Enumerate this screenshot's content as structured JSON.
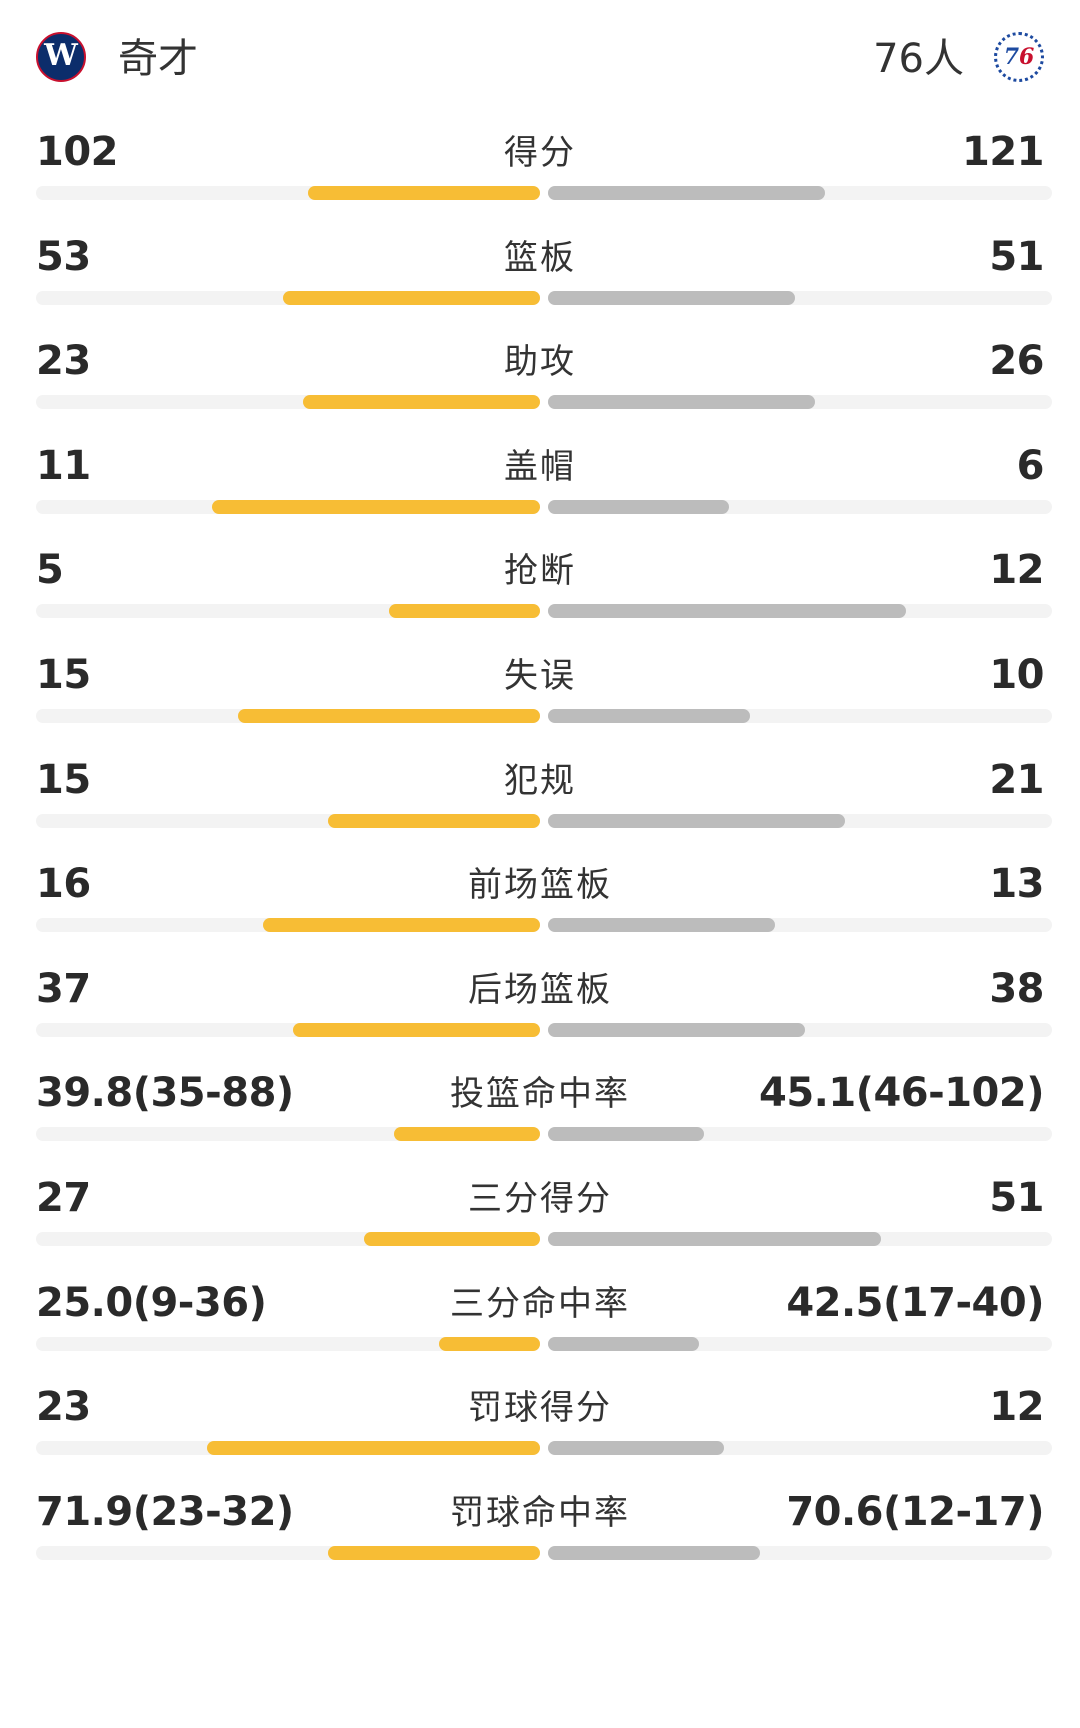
{
  "header": {
    "left_team": "奇才",
    "right_team": "76人",
    "left_logo": "wizards-logo",
    "right_logo": "76ers-logo"
  },
  "colors": {
    "left_bar": "#f7bd35",
    "right_bar": "#bcbcbc",
    "track": "#f3f3f3"
  },
  "stats": [
    {
      "label": "得分",
      "left": "102",
      "right": "121",
      "left_ratio": 0.46,
      "right_ratio": 0.55
    },
    {
      "label": "篮板",
      "left": "53",
      "right": "51",
      "left_ratio": 0.51,
      "right_ratio": 0.49
    },
    {
      "label": "助攻",
      "left": "23",
      "right": "26",
      "left_ratio": 0.47,
      "right_ratio": 0.53
    },
    {
      "label": "盖帽",
      "left": "11",
      "right": "6",
      "left_ratio": 0.65,
      "right_ratio": 0.36
    },
    {
      "label": "抢断",
      "left": "5",
      "right": "12",
      "left_ratio": 0.3,
      "right_ratio": 0.71
    },
    {
      "label": "失误",
      "left": "15",
      "right": "10",
      "left_ratio": 0.6,
      "right_ratio": 0.4
    },
    {
      "label": "犯规",
      "left": "15",
      "right": "21",
      "left_ratio": 0.42,
      "right_ratio": 0.59
    },
    {
      "label": "前场篮板",
      "left": "16",
      "right": "13",
      "left_ratio": 0.55,
      "right_ratio": 0.45
    },
    {
      "label": "后场篮板",
      "left": "37",
      "right": "38",
      "left_ratio": 0.49,
      "right_ratio": 0.51
    },
    {
      "label": "投篮命中率",
      "left": "39.8(35-88)",
      "right": "45.1(46-102)",
      "left_ratio": 0.29,
      "right_ratio": 0.31
    },
    {
      "label": "三分得分",
      "left": "27",
      "right": "51",
      "left_ratio": 0.35,
      "right_ratio": 0.66
    },
    {
      "label": "三分命中率",
      "left": "25.0(9-36)",
      "right": "42.5(17-40)",
      "left_ratio": 0.2,
      "right_ratio": 0.3
    },
    {
      "label": "罚球得分",
      "left": "23",
      "right": "12",
      "left_ratio": 0.66,
      "right_ratio": 0.35
    },
    {
      "label": "罚球命中率",
      "left": "71.9(23-32)",
      "right": "70.6(12-17)",
      "left_ratio": 0.42,
      "right_ratio": 0.42
    }
  ]
}
